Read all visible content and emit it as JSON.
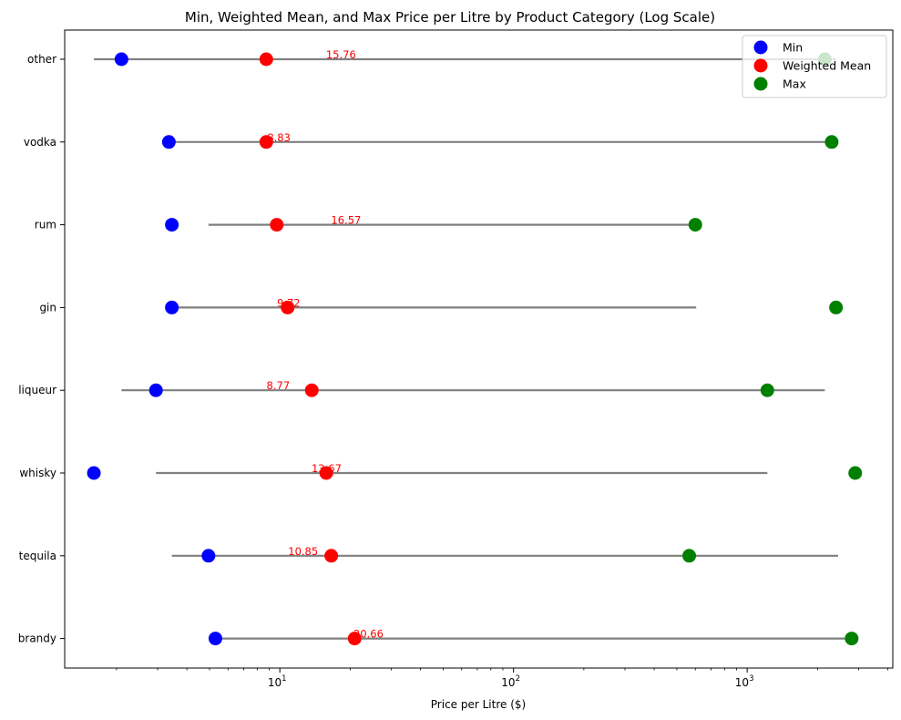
{
  "chart_data": {
    "type": "scatter",
    "title": "Min, Weighted Mean, and Max Price per Litre by Product Category (Log Scale)",
    "xlabel": "Price per Litre ($)",
    "ylabel": "",
    "x_scale": "log",
    "xlim": [
      1.2,
      4200
    ],
    "x_ticks": [
      {
        "value": 10,
        "base": "10",
        "exp": "1"
      },
      {
        "value": 100,
        "base": "10",
        "exp": "2"
      },
      {
        "value": 1000,
        "base": "10",
        "exp": "3"
      }
    ],
    "categories": [
      "other",
      "vodka",
      "rum",
      "gin",
      "liqueur",
      "whisky",
      "tequila",
      "brandy"
    ],
    "series": [
      {
        "name": "Min",
        "color": "#0000ff",
        "values": [
          2.1,
          3.35,
          3.45,
          3.45,
          2.95,
          1.6,
          4.95,
          5.3
        ]
      },
      {
        "name": "Weighted Mean",
        "color": "#ff0000",
        "values": [
          8.75,
          8.75,
          9.7,
          10.8,
          13.7,
          15.8,
          16.6,
          20.9
        ]
      },
      {
        "name": "Max",
        "color": "#008000",
        "values": [
          2150,
          2300,
          600,
          2400,
          1220,
          2900,
          565,
          2800
        ]
      }
    ],
    "range_lines": {
      "color": "#808080",
      "segments": [
        [
          1.6,
          2400
        ],
        [
          3.35,
          2300
        ],
        [
          4.95,
          600
        ],
        [
          3.45,
          605
        ],
        [
          2.1,
          2150
        ],
        [
          2.95,
          1220
        ],
        [
          3.45,
          2450
        ],
        [
          5.3,
          2800
        ]
      ]
    },
    "annotations": [
      {
        "text": "15.76",
        "x": 15.76,
        "category": "other"
      },
      {
        "text": "8.83",
        "x": 8.83,
        "category": "vodka"
      },
      {
        "text": "16.57",
        "x": 16.57,
        "category": "rum"
      },
      {
        "text": "9.72",
        "x": 9.72,
        "category": "gin"
      },
      {
        "text": "8.77",
        "x": 8.77,
        "category": "liqueur"
      },
      {
        "text": "13.67",
        "x": 13.67,
        "category": "whisky"
      },
      {
        "text": "10.85",
        "x": 10.85,
        "category": "tequila"
      },
      {
        "text": "20.66",
        "x": 20.66,
        "category": "brandy"
      }
    ],
    "annotation_color": "#ff0000",
    "legend": {
      "placement": "top-right",
      "entries": [
        "Min",
        "Weighted Mean",
        "Max"
      ]
    },
    "grid": false
  }
}
